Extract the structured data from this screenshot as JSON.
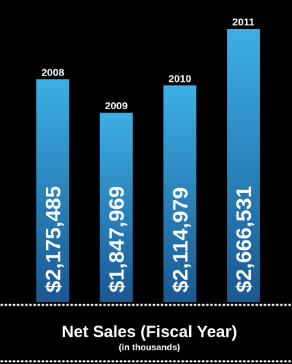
{
  "chart_data": {
    "type": "bar",
    "title": "Net Sales (Fiscal Year)",
    "subtitle": "(in thousands)",
    "categories": [
      "2008",
      "2009",
      "2010",
      "2011"
    ],
    "values": [
      2175485,
      1847969,
      2114979,
      2666531
    ],
    "value_labels": [
      "$2,175,485",
      "$1,847,969",
      "$2,114,979",
      "$2,666,531"
    ],
    "color": "#2a8fd0"
  }
}
